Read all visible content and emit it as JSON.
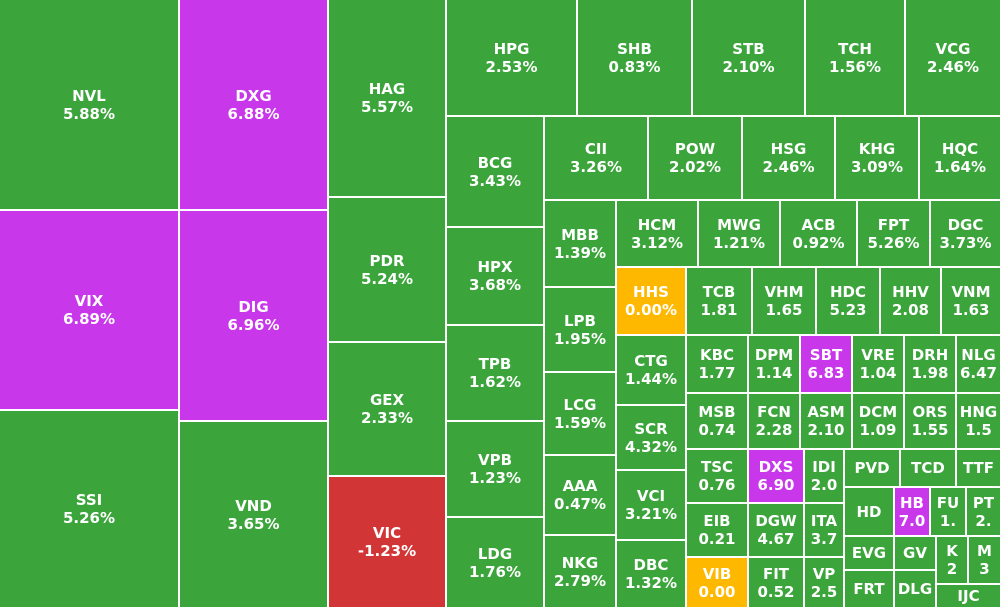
{
  "cells": [
    {
      "label": "NVL",
      "change": "5.88%",
      "color": "#3ba53b"
    },
    {
      "label": "VIX",
      "change": "6.89%",
      "color": "#c837ea"
    },
    {
      "label": "SSI",
      "change": "5.26%",
      "color": "#3ba53b"
    },
    {
      "label": "DXG",
      "change": "6.88%",
      "color": "#c837ea"
    },
    {
      "label": "DIG",
      "change": "6.96%",
      "color": "#c837ea"
    },
    {
      "label": "VND",
      "change": "3.65%",
      "color": "#3ba53b"
    },
    {
      "label": "HAG",
      "change": "5.57%",
      "color": "#3ba53b"
    },
    {
      "label": "PDR",
      "change": "5.24%",
      "color": "#3ba53b"
    },
    {
      "label": "GEX",
      "change": "2.33%",
      "color": "#3ba53b"
    },
    {
      "label": "VIC",
      "change": "-1.23%",
      "color": "#d23535"
    },
    {
      "label": "HPG",
      "change": "2.53%",
      "color": "#3ba53b"
    },
    {
      "label": "SHB",
      "change": "0.83%",
      "color": "#3ba53b"
    },
    {
      "label": "STB",
      "change": "2.10%",
      "color": "#3ba53b"
    },
    {
      "label": "TCH",
      "change": "1.56%",
      "color": "#3ba53b"
    },
    {
      "label": "VCG",
      "change": "2.46%",
      "color": "#3ba53b"
    },
    {
      "label": "BCG",
      "change": "3.43%",
      "color": "#3ba53b"
    },
    {
      "label": "HPX",
      "change": "3.68%",
      "color": "#3ba53b"
    },
    {
      "label": "TPB",
      "change": "1.62%",
      "color": "#3ba53b"
    },
    {
      "label": "VPB",
      "change": "1.23%",
      "color": "#3ba53b"
    },
    {
      "label": "LDG",
      "change": "1.76%",
      "color": "#3ba53b"
    },
    {
      "label": "CII",
      "change": "3.26%",
      "color": "#3ba53b"
    },
    {
      "label": "POW",
      "change": "2.02%",
      "color": "#3ba53b"
    },
    {
      "label": "HSG",
      "change": "2.46%",
      "color": "#3ba53b"
    },
    {
      "label": "KHG",
      "change": "3.09%",
      "color": "#3ba53b"
    },
    {
      "label": "HQC",
      "change": "1.64%",
      "color": "#3ba53b"
    },
    {
      "label": "MBB",
      "change": "1.39%",
      "color": "#3ba53b"
    },
    {
      "label": "LPB",
      "change": "1.95%",
      "color": "#3ba53b"
    },
    {
      "label": "LCG",
      "change": "1.59%",
      "color": "#3ba53b"
    },
    {
      "label": "AAA",
      "change": "0.47%",
      "color": "#3ba53b"
    },
    {
      "label": "NKG",
      "change": "2.79%",
      "color": "#3ba53b"
    },
    {
      "label": "HCM",
      "change": "3.12%",
      "color": "#3ba53b"
    },
    {
      "label": "MWG",
      "change": "1.21%",
      "color": "#3ba53b"
    },
    {
      "label": "ACB",
      "change": "0.92%",
      "color": "#3ba53b"
    },
    {
      "label": "FPT",
      "change": "5.26%",
      "color": "#3ba53b"
    },
    {
      "label": "DGC",
      "change": "3.73%",
      "color": "#3ba53b"
    },
    {
      "label": "HHS",
      "change": "0.00%",
      "color": "#ffb800"
    },
    {
      "label": "CTG",
      "change": "1.44%",
      "color": "#3ba53b"
    },
    {
      "label": "SCR",
      "change": "4.32%",
      "color": "#3ba53b"
    },
    {
      "label": "VCI",
      "change": "3.21%",
      "color": "#3ba53b"
    },
    {
      "label": "DBC",
      "change": "1.32%",
      "color": "#3ba53b"
    },
    {
      "label": "TCB",
      "change": "1.81",
      "color": "#3ba53b"
    },
    {
      "label": "VHM",
      "change": "1.65",
      "color": "#3ba53b"
    },
    {
      "label": "HDC",
      "change": "5.23",
      "color": "#3ba53b"
    },
    {
      "label": "HHV",
      "change": "2.08",
      "color": "#3ba53b"
    },
    {
      "label": "VNM",
      "change": "1.63",
      "color": "#3ba53b"
    },
    {
      "label": "KBC",
      "change": "1.77",
      "color": "#3ba53b"
    },
    {
      "label": "DPM",
      "change": "1.14",
      "color": "#3ba53b"
    },
    {
      "label": "SBT",
      "change": "6.83",
      "color": "#c837ea"
    },
    {
      "label": "VRE",
      "change": "1.04",
      "color": "#3ba53b"
    },
    {
      "label": "DRH",
      "change": "1.98",
      "color": "#3ba53b"
    },
    {
      "label": "NLG",
      "change": "6.47",
      "color": "#3ba53b"
    },
    {
      "label": "MSB",
      "change": "0.74",
      "color": "#3ba53b"
    },
    {
      "label": "FCN",
      "change": "2.28",
      "color": "#3ba53b"
    },
    {
      "label": "ASM",
      "change": "2.10",
      "color": "#3ba53b"
    },
    {
      "label": "DCM",
      "change": "1.09",
      "color": "#3ba53b"
    },
    {
      "label": "ORS",
      "change": "1.55",
      "color": "#3ba53b"
    },
    {
      "label": "HNG",
      "change": "1.5",
      "color": "#3ba53b"
    },
    {
      "label": "TSC",
      "change": "0.76",
      "color": "#3ba53b"
    },
    {
      "label": "EIB",
      "change": "0.21",
      "color": "#3ba53b"
    },
    {
      "label": "VIB",
      "change": "0.00",
      "color": "#ffb800"
    },
    {
      "label": "DXS",
      "change": "6.90",
      "color": "#c837ea"
    },
    {
      "label": "DGW",
      "change": "4.67",
      "color": "#3ba53b"
    },
    {
      "label": "FIT",
      "change": "0.52",
      "color": "#3ba53b"
    },
    {
      "label": "IDI",
      "change": "2.0",
      "color": "#3ba53b"
    },
    {
      "label": "ITA",
      "change": "3.7",
      "color": "#3ba53b"
    },
    {
      "label": "VP",
      "change": "2.5",
      "color": "#3ba53b"
    },
    {
      "label": "PVD",
      "color": "#3ba53b"
    },
    {
      "label": "TCD",
      "color": "#3ba53b"
    },
    {
      "label": "TTF",
      "color": "#3ba53b"
    },
    {
      "label": "HD",
      "color": "#3ba53b"
    },
    {
      "label": "HB",
      "change": "7.0",
      "color": "#c837ea"
    },
    {
      "label": "FU",
      "change": "1.",
      "color": "#3ba53b"
    },
    {
      "label": "PT",
      "change": "2.",
      "color": "#3ba53b"
    },
    {
      "label": "EVG",
      "color": "#3ba53b"
    },
    {
      "label": "GV",
      "color": "#3ba53b"
    },
    {
      "label": "K",
      "change": "2",
      "color": "#3ba53b"
    },
    {
      "label": "M",
      "change": "3",
      "color": "#3ba53b"
    },
    {
      "label": "FRT",
      "color": "#3ba53b"
    },
    {
      "label": "DLG",
      "color": "#3ba53b"
    },
    {
      "label": "IJC",
      "color": "#3ba53b"
    }
  ]
}
